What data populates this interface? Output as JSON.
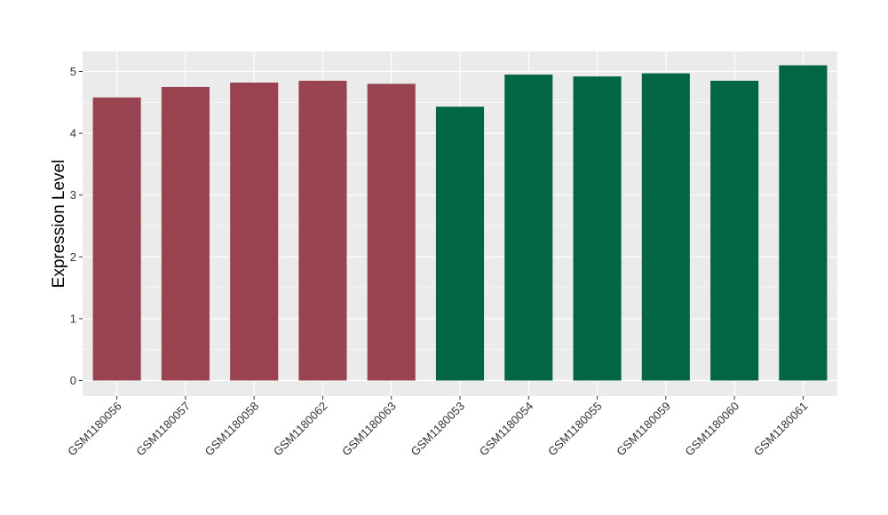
{
  "chart_data": {
    "type": "bar",
    "title": "",
    "xlabel": "",
    "ylabel": "Expression Level",
    "ylim": [
      0,
      5.1
    ],
    "yticks": [
      "0",
      "1",
      "2",
      "3",
      "4",
      "5"
    ],
    "grid": true,
    "legend": "none",
    "colors": {
      "group1": "#9a4350",
      "group2": "#006644",
      "panel": "#ebebeb",
      "gridline": "#ffffff"
    },
    "categories": [
      "GSM1180056",
      "GSM1180057",
      "GSM1180058",
      "GSM1180062",
      "GSM1180063",
      "GSM1180053",
      "GSM1180054",
      "GSM1180055",
      "GSM1180059",
      "GSM1180060",
      "GSM1180061"
    ],
    "values": [
      4.58,
      4.75,
      4.82,
      4.85,
      4.8,
      4.43,
      4.95,
      4.92,
      4.97,
      4.85,
      5.1
    ],
    "bar_color_group": [
      0,
      0,
      0,
      0,
      0,
      1,
      1,
      1,
      1,
      1,
      1
    ]
  }
}
